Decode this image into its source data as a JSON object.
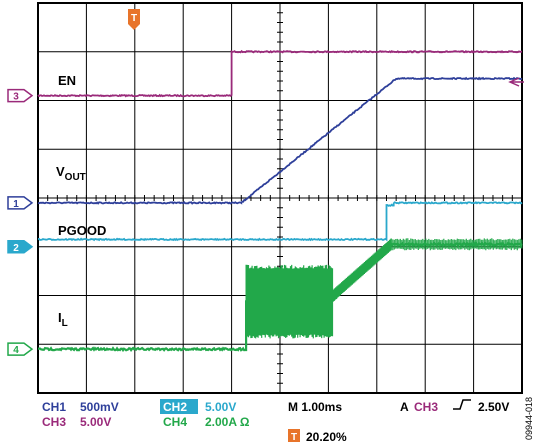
{
  "chart_data": {
    "type": "line",
    "title": "",
    "xlim": [
      0,
      10
    ],
    "ylim": [
      0,
      8
    ],
    "grid": true,
    "x_divisions": 10,
    "y_divisions": 8,
    "series": [
      {
        "name": "EN",
        "channel": "3",
        "color": "#9a2a7a",
        "marker_div": 6.1,
        "x": [
          0,
          4.0,
          4.0,
          10
        ],
        "y": [
          6.1,
          6.1,
          7.0,
          7.0
        ]
      },
      {
        "name": "VOUT",
        "channel": "1",
        "color": "#2e3f9a",
        "marker_div": 3.9,
        "x": [
          0,
          4.2,
          7.4,
          10
        ],
        "y": [
          3.9,
          3.9,
          6.45,
          6.45
        ]
      },
      {
        "name": "PGOOD",
        "channel": "2",
        "color": "#2aa8cc",
        "marker_div": 3.0,
        "x": [
          0,
          7.2,
          7.2,
          7.35,
          7.35,
          10
        ],
        "y": [
          3.15,
          3.15,
          3.85,
          3.85,
          3.9,
          3.9
        ]
      },
      {
        "name": "IL",
        "channel": "4",
        "color": "#22a84a",
        "marker_div": 0.9,
        "x": [
          0,
          4.3,
          4.3,
          6.1,
          6.6,
          7.3,
          10
        ],
        "y": [
          0.9,
          0.9,
          1.9,
          1.9,
          2.4,
          3.05,
          3.05
        ]
      }
    ],
    "labels": {
      "en": "EN",
      "vout_main": "V",
      "vout_sub": "OUT",
      "pgood": "PGOOD",
      "il_main": "I",
      "il_sub": "L"
    },
    "trigger_marker": "T",
    "trigger_x_div": 4.0,
    "readout": {
      "ch1_name": "CH1",
      "ch1_val": "500mV",
      "ch3_name": "CH3",
      "ch3_val": "5.00V",
      "ch2_name": "CH2",
      "ch2_val": "5.00V",
      "ch4_name": "CH4",
      "ch4_val": "2.00A Ω",
      "timebase": "M 1.00ms",
      "trig_prefix": "A",
      "trig_ch": "CH3",
      "trig_slope": "_/",
      "trig_level": "2.50V",
      "trig_pos_marker": "T",
      "trig_pos": "20.20%"
    },
    "figure_id": "09944-018"
  },
  "colors": {
    "ch1": "#2e3f9a",
    "ch2": "#2aa8cc",
    "ch3": "#9a2a7a",
    "ch4": "#22a84a",
    "trigger": "#e8742a"
  }
}
